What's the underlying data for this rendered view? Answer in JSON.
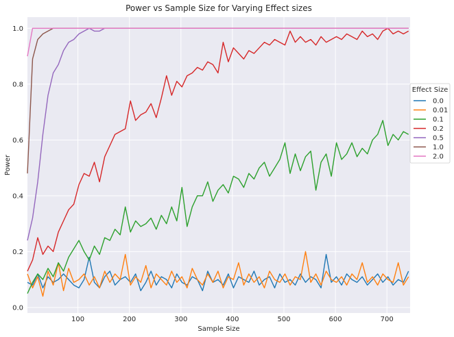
{
  "chart_data": {
    "type": "line",
    "title": "Power vs Sample Size for Varying Effect sizes",
    "xlabel": "Sample Size",
    "ylabel": "Power",
    "xlim": [
      2,
      745
    ],
    "ylim": [
      -0.02,
      1.04
    ],
    "xticks": [
      100,
      200,
      300,
      400,
      500,
      600,
      700
    ],
    "yticks": [
      0.0,
      0.2,
      0.4,
      0.6,
      0.8,
      1.0
    ],
    "xtick_labels": [
      "100",
      "200",
      "300",
      "400",
      "500",
      "600",
      "700"
    ],
    "ytick_labels": [
      "0.0",
      "0.2",
      "0.4",
      "0.6",
      "0.8",
      "1.0"
    ],
    "grid": true,
    "legend": {
      "title": "Effect Size",
      "placement": "center-right"
    },
    "series": [
      {
        "name": "0.0",
        "color": "#1f77b4",
        "x": [
          2,
          12,
          22,
          32,
          42,
          52,
          62,
          72,
          82,
          92,
          102,
          112,
          122,
          132,
          142,
          152,
          162,
          172,
          182,
          192,
          202,
          212,
          222,
          232,
          242,
          252,
          262,
          272,
          282,
          292,
          302,
          312,
          322,
          332,
          342,
          352,
          362,
          372,
          382,
          392,
          402,
          412,
          422,
          432,
          442,
          452,
          462,
          472,
          482,
          492,
          502,
          512,
          522,
          532,
          542,
          552,
          562,
          572,
          582,
          592,
          602,
          612,
          622,
          632,
          642,
          652,
          662,
          672,
          682,
          692,
          702,
          712,
          722,
          732,
          742
        ],
        "y": [
          0.09,
          0.08,
          0.12,
          0.07,
          0.11,
          0.09,
          0.1,
          0.12,
          0.1,
          0.08,
          0.07,
          0.1,
          0.18,
          0.09,
          0.07,
          0.11,
          0.13,
          0.08,
          0.1,
          0.11,
          0.09,
          0.12,
          0.06,
          0.09,
          0.13,
          0.08,
          0.11,
          0.1,
          0.07,
          0.12,
          0.09,
          0.08,
          0.11,
          0.1,
          0.06,
          0.13,
          0.09,
          0.1,
          0.08,
          0.12,
          0.07,
          0.11,
          0.1,
          0.09,
          0.13,
          0.08,
          0.1,
          0.11,
          0.07,
          0.12,
          0.09,
          0.1,
          0.08,
          0.12,
          0.09,
          0.11,
          0.1,
          0.07,
          0.19,
          0.09,
          0.11,
          0.08,
          0.12,
          0.1,
          0.09,
          0.11,
          0.08,
          0.1,
          0.12,
          0.09,
          0.11,
          0.08,
          0.1,
          0.09,
          0.13
        ]
      },
      {
        "name": "0.01",
        "color": "#ff7f0e",
        "x": [
          2,
          12,
          22,
          32,
          42,
          52,
          62,
          72,
          82,
          92,
          102,
          112,
          122,
          132,
          142,
          152,
          162,
          172,
          182,
          192,
          202,
          212,
          222,
          232,
          242,
          252,
          262,
          272,
          282,
          292,
          302,
          312,
          322,
          332,
          342,
          352,
          362,
          372,
          382,
          392,
          402,
          412,
          422,
          432,
          442,
          452,
          462,
          472,
          482,
          492,
          502,
          512,
          522,
          532,
          542,
          552,
          562,
          572,
          582,
          592,
          602,
          612,
          622,
          632,
          642,
          652,
          662,
          672,
          682,
          692,
          702,
          712,
          722,
          732,
          742
        ],
        "y": [
          0.12,
          0.07,
          0.11,
          0.04,
          0.13,
          0.08,
          0.16,
          0.06,
          0.14,
          0.09,
          0.1,
          0.12,
          0.08,
          0.11,
          0.07,
          0.13,
          0.09,
          0.12,
          0.1,
          0.19,
          0.08,
          0.11,
          0.09,
          0.15,
          0.07,
          0.12,
          0.1,
          0.08,
          0.13,
          0.09,
          0.11,
          0.07,
          0.14,
          0.1,
          0.08,
          0.12,
          0.09,
          0.13,
          0.07,
          0.11,
          0.1,
          0.16,
          0.08,
          0.12,
          0.09,
          0.11,
          0.07,
          0.13,
          0.1,
          0.09,
          0.12,
          0.08,
          0.11,
          0.1,
          0.2,
          0.09,
          0.12,
          0.08,
          0.13,
          0.1,
          0.09,
          0.11,
          0.08,
          0.12,
          0.1,
          0.16,
          0.09,
          0.11,
          0.08,
          0.12,
          0.1,
          0.09,
          0.16,
          0.08,
          0.11
        ]
      },
      {
        "name": "0.1",
        "color": "#2ca02c",
        "x": [
          2,
          12,
          22,
          32,
          42,
          52,
          62,
          72,
          82,
          92,
          102,
          112,
          122,
          132,
          142,
          152,
          162,
          172,
          182,
          192,
          202,
          212,
          222,
          232,
          242,
          252,
          262,
          272,
          282,
          292,
          302,
          312,
          322,
          332,
          342,
          352,
          362,
          372,
          382,
          392,
          402,
          412,
          422,
          432,
          442,
          452,
          462,
          472,
          482,
          492,
          502,
          512,
          522,
          532,
          542,
          552,
          562,
          572,
          582,
          592,
          602,
          612,
          622,
          632,
          642,
          652,
          662,
          672,
          682,
          692,
          702,
          712,
          722,
          732,
          742
        ],
        "y": [
          0.05,
          0.09,
          0.12,
          0.1,
          0.14,
          0.11,
          0.16,
          0.13,
          0.18,
          0.21,
          0.24,
          0.2,
          0.17,
          0.22,
          0.19,
          0.25,
          0.24,
          0.28,
          0.26,
          0.36,
          0.27,
          0.31,
          0.29,
          0.3,
          0.32,
          0.28,
          0.33,
          0.3,
          0.36,
          0.31,
          0.43,
          0.29,
          0.36,
          0.4,
          0.4,
          0.45,
          0.38,
          0.42,
          0.44,
          0.41,
          0.47,
          0.46,
          0.43,
          0.48,
          0.46,
          0.5,
          0.52,
          0.47,
          0.5,
          0.53,
          0.59,
          0.48,
          0.55,
          0.49,
          0.54,
          0.56,
          0.42,
          0.52,
          0.55,
          0.47,
          0.59,
          0.53,
          0.55,
          0.59,
          0.54,
          0.57,
          0.55,
          0.6,
          0.62,
          0.67,
          0.58,
          0.62,
          0.6,
          0.63,
          0.62
        ]
      },
      {
        "name": "0.2",
        "color": "#d62728",
        "x": [
          2,
          12,
          22,
          32,
          42,
          52,
          62,
          72,
          82,
          92,
          102,
          112,
          122,
          132,
          142,
          152,
          162,
          172,
          182,
          192,
          202,
          212,
          222,
          232,
          242,
          252,
          262,
          272,
          282,
          292,
          302,
          312,
          322,
          332,
          342,
          352,
          362,
          372,
          382,
          392,
          402,
          412,
          422,
          432,
          442,
          452,
          462,
          472,
          482,
          492,
          502,
          512,
          522,
          532,
          542,
          552,
          562,
          572,
          582,
          592,
          602,
          612,
          622,
          632,
          642,
          652,
          662,
          672,
          682,
          692,
          702,
          712,
          722,
          732,
          742
        ],
        "y": [
          0.13,
          0.17,
          0.25,
          0.19,
          0.22,
          0.2,
          0.27,
          0.31,
          0.35,
          0.37,
          0.44,
          0.48,
          0.47,
          0.52,
          0.45,
          0.54,
          0.58,
          0.62,
          0.63,
          0.64,
          0.74,
          0.67,
          0.69,
          0.7,
          0.73,
          0.68,
          0.75,
          0.83,
          0.76,
          0.81,
          0.79,
          0.83,
          0.84,
          0.86,
          0.85,
          0.88,
          0.87,
          0.84,
          0.95,
          0.88,
          0.93,
          0.91,
          0.89,
          0.92,
          0.91,
          0.93,
          0.95,
          0.94,
          0.96,
          0.95,
          0.94,
          0.99,
          0.95,
          0.97,
          0.95,
          0.96,
          0.94,
          0.97,
          0.95,
          0.96,
          0.97,
          0.96,
          0.98,
          0.97,
          0.96,
          0.99,
          0.97,
          0.98,
          0.96,
          0.99,
          1.0,
          0.98,
          0.99,
          0.98,
          0.99
        ]
      },
      {
        "name": "0.5",
        "color": "#9467bd",
        "x": [
          2,
          12,
          22,
          32,
          42,
          52,
          62,
          72,
          82,
          92,
          102,
          112,
          122,
          132,
          142,
          152,
          162,
          172,
          182,
          192,
          202,
          212,
          222,
          232,
          242,
          252,
          262,
          272,
          282,
          292,
          302,
          312,
          322,
          332,
          342,
          352,
          362,
          372,
          382,
          392,
          402,
          412,
          422,
          432,
          442,
          452,
          462,
          472,
          482,
          492,
          502,
          512,
          522,
          532,
          542,
          552,
          562,
          572,
          582,
          592,
          602,
          612,
          622,
          632,
          642,
          652,
          662,
          672,
          682,
          692,
          702,
          712,
          722,
          732,
          742
        ],
        "y": [
          0.24,
          0.32,
          0.45,
          0.62,
          0.76,
          0.84,
          0.87,
          0.92,
          0.95,
          0.96,
          0.98,
          0.99,
          1.0,
          0.99,
          0.99,
          1.0,
          1.0,
          1.0,
          1.0,
          1.0,
          1.0,
          1.0,
          1.0,
          1.0,
          1.0,
          1.0,
          1.0,
          1.0,
          1.0,
          1.0,
          1.0,
          1.0,
          1.0,
          1.0,
          1.0,
          1.0,
          1.0,
          1.0,
          1.0,
          1.0,
          1.0,
          1.0,
          1.0,
          1.0,
          1.0,
          1.0,
          1.0,
          1.0,
          1.0,
          1.0,
          1.0,
          1.0,
          1.0,
          1.0,
          1.0,
          1.0,
          1.0,
          1.0,
          1.0,
          1.0,
          1.0,
          1.0,
          1.0,
          1.0,
          1.0,
          1.0,
          1.0,
          1.0,
          1.0,
          1.0,
          1.0,
          1.0,
          1.0,
          1.0,
          1.0
        ]
      },
      {
        "name": "1.0",
        "color": "#8c564b",
        "x": [
          2,
          12,
          22,
          32,
          42,
          52,
          62,
          72,
          82,
          92,
          102,
          112,
          122,
          132,
          142,
          152,
          162,
          172,
          182,
          192,
          202,
          212,
          222,
          232,
          242,
          252,
          262,
          272,
          282,
          292,
          302,
          312,
          322,
          332,
          342,
          352,
          362,
          372,
          382,
          392,
          402,
          412,
          422,
          432,
          442,
          452,
          462,
          472,
          482,
          492,
          502,
          512,
          522,
          532,
          542,
          552,
          562,
          572,
          582,
          592,
          602,
          612,
          622,
          632,
          642,
          652,
          662,
          672,
          682,
          692,
          702,
          712,
          722,
          732,
          742
        ],
        "y": [
          0.48,
          0.89,
          0.96,
          0.98,
          0.99,
          1.0,
          1.0,
          1.0,
          1.0,
          1.0,
          1.0,
          1.0,
          1.0,
          1.0,
          1.0,
          1.0,
          1.0,
          1.0,
          1.0,
          1.0,
          1.0,
          1.0,
          1.0,
          1.0,
          1.0,
          1.0,
          1.0,
          1.0,
          1.0,
          1.0,
          1.0,
          1.0,
          1.0,
          1.0,
          1.0,
          1.0,
          1.0,
          1.0,
          1.0,
          1.0,
          1.0,
          1.0,
          1.0,
          1.0,
          1.0,
          1.0,
          1.0,
          1.0,
          1.0,
          1.0,
          1.0,
          1.0,
          1.0,
          1.0,
          1.0,
          1.0,
          1.0,
          1.0,
          1.0,
          1.0,
          1.0,
          1.0,
          1.0,
          1.0,
          1.0,
          1.0,
          1.0,
          1.0,
          1.0,
          1.0,
          1.0,
          1.0,
          1.0,
          1.0,
          1.0
        ]
      },
      {
        "name": "2.0",
        "color": "#e377c2",
        "x": [
          2,
          12,
          22,
          32,
          42,
          52,
          62,
          72,
          82,
          92,
          102,
          112,
          122,
          132,
          142,
          152,
          162,
          172,
          182,
          192,
          202,
          212,
          222,
          232,
          242,
          252,
          262,
          272,
          282,
          292,
          302,
          312,
          322,
          332,
          342,
          352,
          362,
          372,
          382,
          392,
          402,
          412,
          422,
          432,
          442,
          452,
          462,
          472,
          482,
          492,
          502,
          512,
          522,
          532,
          542,
          552,
          562,
          572,
          582,
          592,
          602,
          612,
          622,
          632,
          642,
          652,
          662,
          672,
          682,
          692,
          702,
          712,
          722,
          732,
          742
        ],
        "y": [
          0.9,
          1.0,
          1.0,
          1.0,
          1.0,
          1.0,
          1.0,
          1.0,
          1.0,
          1.0,
          1.0,
          1.0,
          1.0,
          1.0,
          1.0,
          1.0,
          1.0,
          1.0,
          1.0,
          1.0,
          1.0,
          1.0,
          1.0,
          1.0,
          1.0,
          1.0,
          1.0,
          1.0,
          1.0,
          1.0,
          1.0,
          1.0,
          1.0,
          1.0,
          1.0,
          1.0,
          1.0,
          1.0,
          1.0,
          1.0,
          1.0,
          1.0,
          1.0,
          1.0,
          1.0,
          1.0,
          1.0,
          1.0,
          1.0,
          1.0,
          1.0,
          1.0,
          1.0,
          1.0,
          1.0,
          1.0,
          1.0,
          1.0,
          1.0,
          1.0,
          1.0,
          1.0,
          1.0,
          1.0,
          1.0,
          1.0,
          1.0,
          1.0,
          1.0,
          1.0,
          1.0,
          1.0,
          1.0,
          1.0,
          1.0
        ]
      }
    ]
  }
}
